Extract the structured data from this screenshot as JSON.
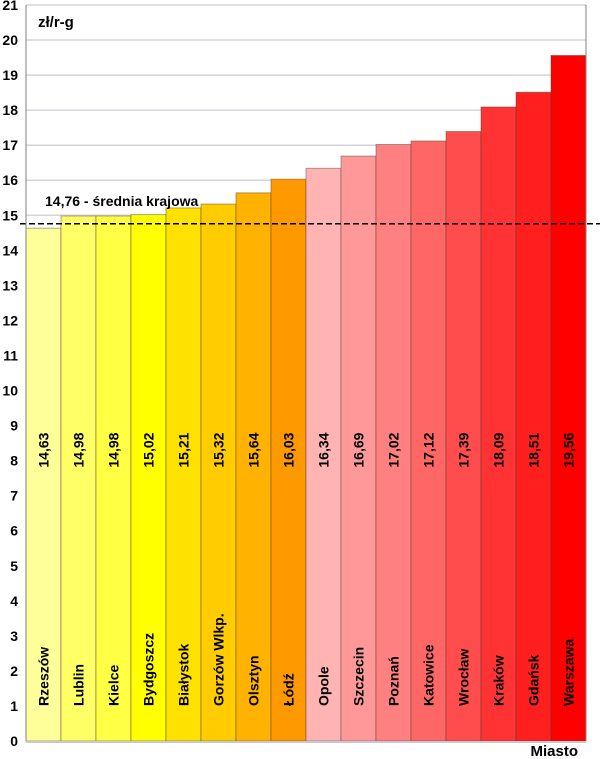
{
  "chart_data": {
    "type": "bar",
    "title": "",
    "ylabel": "zł/r-g",
    "xlabel": "Miasto",
    "ylim": [
      0,
      21
    ],
    "yticks": [
      "0",
      "1",
      "2",
      "3",
      "4",
      "5",
      "6",
      "7",
      "8",
      "9",
      "10",
      "11",
      "12",
      "13",
      "14",
      "15",
      "16",
      "17",
      "18",
      "19",
      "20",
      "21"
    ],
    "grid": true,
    "categories": [
      "Rzeszów",
      "Lublin",
      "Kielce",
      "Bydgoszcz",
      "Białystok",
      "Gorzów Wlkp.",
      "Olsztyn",
      "Łódź",
      "Opole",
      "Szczecin",
      "Poznań",
      "Katowice",
      "Wrocław",
      "Kraków",
      "Gdańsk",
      "Warszawa"
    ],
    "values": [
      14.63,
      14.98,
      14.98,
      15.02,
      15.21,
      15.32,
      15.64,
      16.03,
      16.34,
      16.69,
      17.02,
      17.12,
      17.39,
      18.09,
      18.51,
      19.56
    ],
    "value_labels": [
      "14,63",
      "14,98",
      "14,98",
      "15,02",
      "15,21",
      "15,32",
      "15,64",
      "16,03",
      "16,34",
      "16,69",
      "17,02",
      "17,12",
      "17,39",
      "18,09",
      "18,51",
      "19,56"
    ],
    "colors": [
      "#FFFF99",
      "#FFFF66",
      "#FFFF44",
      "#FFFF00",
      "#FFE100",
      "#FFCC00",
      "#FFB300",
      "#FF9900",
      "#FFB3B3",
      "#FF9999",
      "#FF8080",
      "#FF6666",
      "#FF4D4D",
      "#FF3333",
      "#FF1F1F",
      "#FF0000"
    ],
    "reference_line": {
      "value": 14.76,
      "label": "14,76  - średnia krajowa",
      "style": "dashed"
    }
  }
}
